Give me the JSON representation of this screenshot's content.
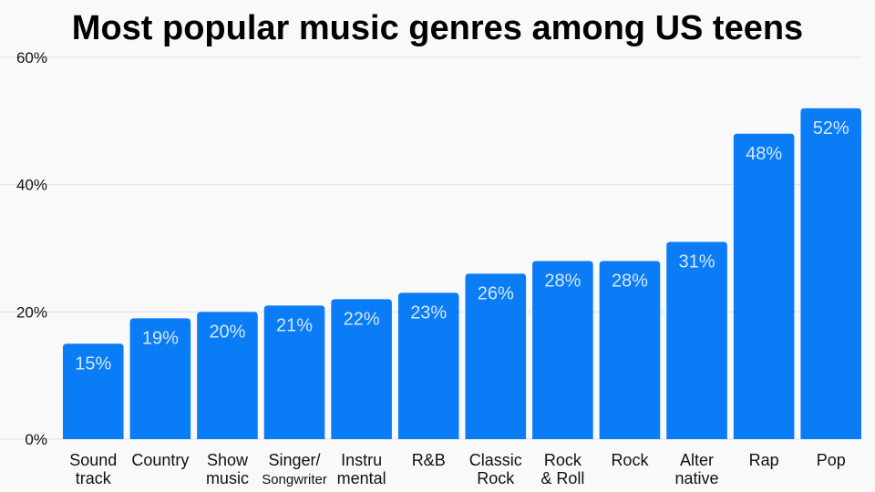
{
  "chart_data": {
    "type": "bar",
    "title": "Most popular music genres among US teens",
    "categories": [
      "Sound\ntrack",
      "Country",
      "Show\nmusic",
      "Singer/\nSongwriter",
      "Instru\nmental",
      "R&B",
      "Classic\nRock",
      "Rock\n& Roll",
      "Rock",
      "Alter\nnative",
      "Rap",
      "Pop"
    ],
    "values": [
      15,
      19,
      20,
      21,
      22,
      23,
      26,
      28,
      28,
      31,
      48,
      52
    ],
    "value_labels": [
      "15%",
      "19%",
      "20%",
      "21%",
      "22%",
      "23%",
      "26%",
      "28%",
      "28%",
      "31%",
      "48%",
      "52%"
    ],
    "ylim": [
      0,
      60
    ],
    "yticks": [
      0,
      20,
      40,
      60
    ],
    "ytick_labels": [
      "0%",
      "20%",
      "40%",
      "60%"
    ],
    "xlabel": "",
    "ylabel": "",
    "grid": true,
    "colors": {
      "bar": "#0a7cf6",
      "value_label": "#d6e7ff",
      "background": "#f9f9f9",
      "grid": "#e2e2e2"
    }
  }
}
